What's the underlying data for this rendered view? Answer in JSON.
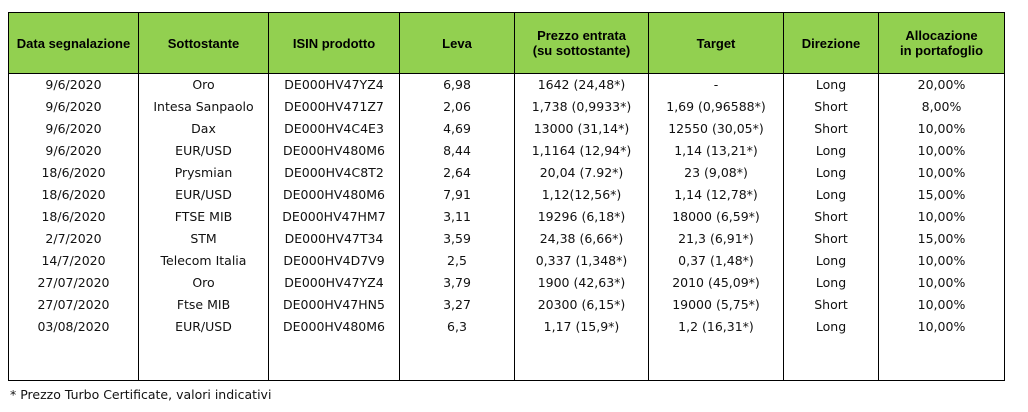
{
  "table": {
    "headers": [
      "Data segnalazione",
      "Sottostante",
      "ISIN prodotto",
      "Leva",
      "Prezzo entrata\n(su sottostante)",
      "Target",
      "Direzione",
      "Allocazione\nin portafoglio"
    ],
    "rows": [
      [
        "9/6/2020",
        "Oro",
        "DE000HV47YZ4",
        "6,98",
        "1642 (24,48*)",
        "-",
        "Long",
        "20,00%"
      ],
      [
        "9/6/2020",
        "Intesa Sanpaolo",
        "DE000HV471Z7",
        "2,06",
        "1,738 (0,9933*)",
        "1,69 (0,96588*)",
        "Short",
        "8,00%"
      ],
      [
        "9/6/2020",
        "Dax",
        "DE000HV4C4E3",
        "4,69",
        "13000 (31,14*)",
        "12550 (30,05*)",
        "Short",
        "10,00%"
      ],
      [
        "9/6/2020",
        "EUR/USD",
        "DE000HV480M6",
        "8,44",
        "1,1164 (12,94*)",
        "1,14 (13,21*)",
        "Long",
        "10,00%"
      ],
      [
        "18/6/2020",
        "Prysmian",
        "DE000HV4C8T2",
        "2,64",
        "20,04 (7.92*)",
        "23 (9,08*)",
        "Long",
        "10,00%"
      ],
      [
        "18/6/2020",
        "EUR/USD",
        "DE000HV480M6",
        "7,91",
        "1,12(12,56*)",
        "1,14 (12,78*)",
        "Long",
        "15,00%"
      ],
      [
        "18/6/2020",
        "FTSE MIB",
        "DE000HV47HM7",
        "3,11",
        "19296 (6,18*)",
        "18000 (6,59*)",
        "Short",
        "10,00%"
      ],
      [
        "2/7/2020",
        "STM",
        "DE000HV47T34",
        "3,59",
        "24,38 (6,66*)",
        "21,3 (6,91*)",
        "Short",
        "15,00%"
      ],
      [
        "14/7/2020",
        "Telecom Italia",
        "DE000HV4D7V9",
        "2,5",
        "0,337 (1,348*)",
        "0,37 (1,48*)",
        "Long",
        "10,00%"
      ],
      [
        "27/07/2020",
        "Oro",
        "DE000HV47YZ4",
        "3,79",
        "1900 (42,63*)",
        "2010 (45,09*)",
        "Long",
        "10,00%"
      ],
      [
        "27/07/2020",
        "Ftse MIB",
        "DE000HV47HN5",
        "3,27",
        "20300 (6,15*)",
        "19000 (5,75*)",
        "Short",
        "10,00%"
      ],
      [
        "03/08/2020",
        "EUR/USD",
        "DE000HV480M6",
        "6,3",
        "1,17 (15,9*)",
        "1,2 (16,31*)",
        "Long",
        "10,00%"
      ]
    ]
  },
  "footnote": "* Prezzo Turbo Certificate, valori indicativi",
  "colors": {
    "header_background": "#92d050",
    "border": "#000000"
  }
}
